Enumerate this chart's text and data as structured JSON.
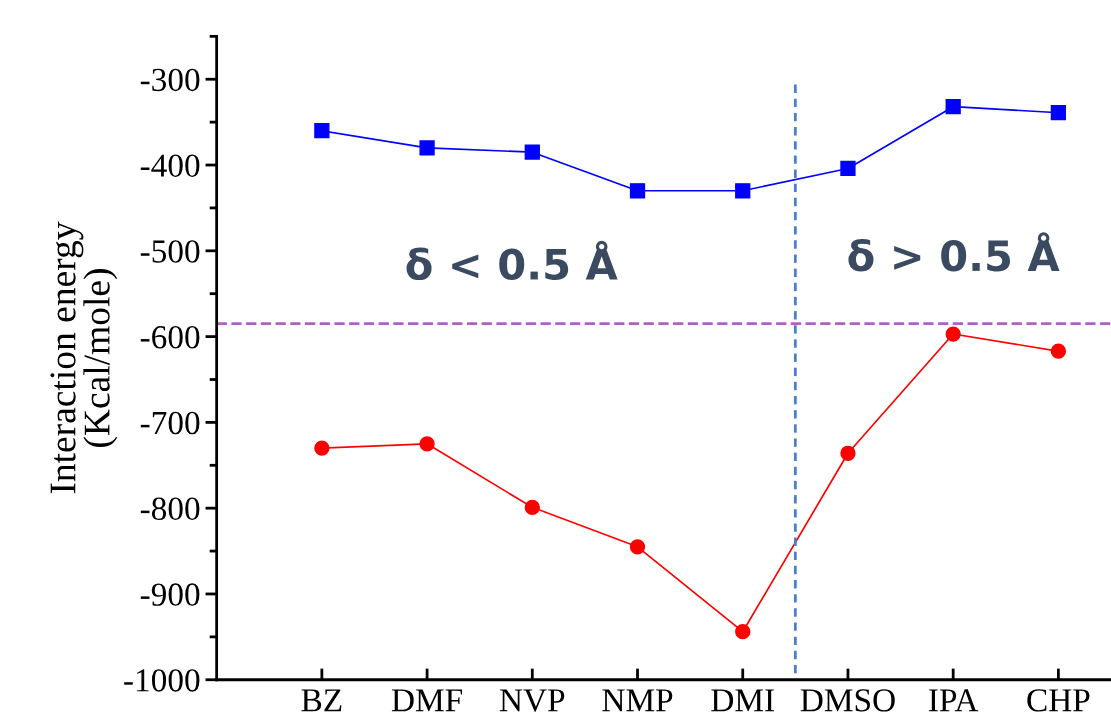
{
  "chart_data": {
    "type": "line",
    "ylabel": "Interaction energy\n(Kcal/mole)",
    "categories": [
      "BZ",
      "DMF",
      "NVP",
      "NMP",
      "DMI",
      "DMSO",
      "IPA",
      "CHP"
    ],
    "series": [
      {
        "color": "#0000ff",
        "marker": "square",
        "values": [
          -360,
          -380,
          -385,
          -430,
          -430,
          -404,
          -332,
          -339
        ]
      },
      {
        "color": "#ff0000",
        "marker": "circle",
        "values": [
          -730,
          -725,
          -799,
          -845,
          -944,
          -736,
          -597,
          -617
        ]
      }
    ],
    "ylim": [
      -1000,
      -250
    ],
    "yticks": [
      -300,
      -400,
      -500,
      -600,
      -700,
      -800,
      -900,
      -1000
    ],
    "ref_lines": [
      {
        "axis": "y",
        "value": -585,
        "color": "#b060c0",
        "line_style": "dashed"
      }
    ],
    "annotations": [
      "δ < 0.5 Å",
      "δ > 0.5 Å"
    ],
    "grid": false,
    "legend": false
  }
}
